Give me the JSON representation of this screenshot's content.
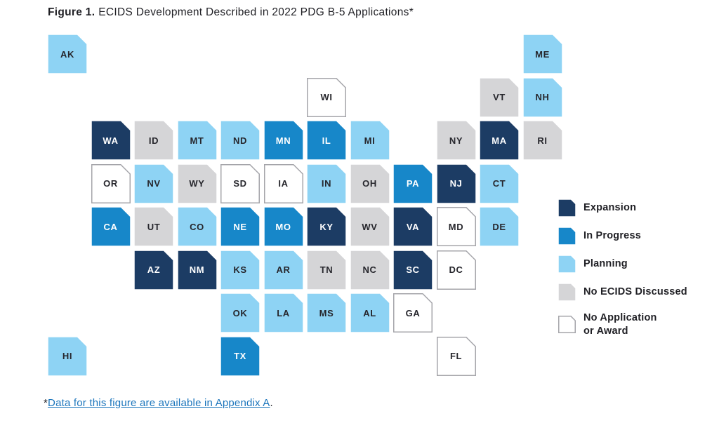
{
  "title": {
    "label": "Figure 1.",
    "text": "ECIDS Development Described in 2022 PDG B-5 Applications*"
  },
  "footnote": {
    "asterisk": "*",
    "link_text": "Data for this figure are available in Appendix A",
    "suffix": "."
  },
  "legend": {
    "items": [
      {
        "key": "expansion",
        "label": "Expansion"
      },
      {
        "key": "in_progress",
        "label": "In Progress"
      },
      {
        "key": "planning",
        "label": "Planning"
      },
      {
        "key": "no_ecids",
        "label": "No ECIDS Discussed"
      },
      {
        "key": "none",
        "label": "No Application\nor Award"
      }
    ]
  },
  "chart_data": {
    "type": "heatmap",
    "subtype": "us-state-tile-cartogram",
    "title": "Figure 1. ECIDS Development Described in 2022 PDG B-5 Applications*",
    "legend_position": "right",
    "categories": {
      "expansion": {
        "label": "Expansion",
        "fill": "#1c3c64",
        "text": "#ffffff"
      },
      "in_progress": {
        "label": "In Progress",
        "fill": "#1787c9",
        "text": "#ffffff"
      },
      "planning": {
        "label": "Planning",
        "fill": "#8ed3f4",
        "text": "#26262c"
      },
      "no_ecids": {
        "label": "No ECIDS Discussed",
        "fill": "#d5d5d7",
        "text": "#26262c"
      },
      "none": {
        "label": "No Application or Award",
        "fill": "#ffffff",
        "text": "#26262c",
        "stroke": "#a5a5aa"
      }
    },
    "states": [
      {
        "abbr": "AK",
        "row": 0,
        "col": 0,
        "category": "planning"
      },
      {
        "abbr": "ME",
        "row": 0,
        "col": 11,
        "category": "planning"
      },
      {
        "abbr": "WI",
        "row": 1,
        "col": 6,
        "category": "none"
      },
      {
        "abbr": "VT",
        "row": 1,
        "col": 10,
        "category": "no_ecids"
      },
      {
        "abbr": "NH",
        "row": 1,
        "col": 11,
        "category": "planning"
      },
      {
        "abbr": "WA",
        "row": 2,
        "col": 1,
        "category": "expansion"
      },
      {
        "abbr": "ID",
        "row": 2,
        "col": 2,
        "category": "no_ecids"
      },
      {
        "abbr": "MT",
        "row": 2,
        "col": 3,
        "category": "planning"
      },
      {
        "abbr": "ND",
        "row": 2,
        "col": 4,
        "category": "planning"
      },
      {
        "abbr": "MN",
        "row": 2,
        "col": 5,
        "category": "in_progress"
      },
      {
        "abbr": "IL",
        "row": 2,
        "col": 6,
        "category": "in_progress"
      },
      {
        "abbr": "MI",
        "row": 2,
        "col": 7,
        "category": "planning"
      },
      {
        "abbr": "NY",
        "row": 2,
        "col": 9,
        "category": "no_ecids"
      },
      {
        "abbr": "MA",
        "row": 2,
        "col": 10,
        "category": "expansion"
      },
      {
        "abbr": "RI",
        "row": 2,
        "col": 11,
        "category": "no_ecids"
      },
      {
        "abbr": "OR",
        "row": 3,
        "col": 1,
        "category": "none"
      },
      {
        "abbr": "NV",
        "row": 3,
        "col": 2,
        "category": "planning"
      },
      {
        "abbr": "WY",
        "row": 3,
        "col": 3,
        "category": "no_ecids"
      },
      {
        "abbr": "SD",
        "row": 3,
        "col": 4,
        "category": "none"
      },
      {
        "abbr": "IA",
        "row": 3,
        "col": 5,
        "category": "none"
      },
      {
        "abbr": "IN",
        "row": 3,
        "col": 6,
        "category": "planning"
      },
      {
        "abbr": "OH",
        "row": 3,
        "col": 7,
        "category": "no_ecids"
      },
      {
        "abbr": "PA",
        "row": 3,
        "col": 8,
        "category": "in_progress"
      },
      {
        "abbr": "NJ",
        "row": 3,
        "col": 9,
        "category": "expansion"
      },
      {
        "abbr": "CT",
        "row": 3,
        "col": 10,
        "category": "planning"
      },
      {
        "abbr": "CA",
        "row": 4,
        "col": 1,
        "category": "in_progress"
      },
      {
        "abbr": "UT",
        "row": 4,
        "col": 2,
        "category": "no_ecids"
      },
      {
        "abbr": "CO",
        "row": 4,
        "col": 3,
        "category": "planning"
      },
      {
        "abbr": "NE",
        "row": 4,
        "col": 4,
        "category": "in_progress"
      },
      {
        "abbr": "MO",
        "row": 4,
        "col": 5,
        "category": "in_progress"
      },
      {
        "abbr": "KY",
        "row": 4,
        "col": 6,
        "category": "expansion"
      },
      {
        "abbr": "WV",
        "row": 4,
        "col": 7,
        "category": "no_ecids"
      },
      {
        "abbr": "VA",
        "row": 4,
        "col": 8,
        "category": "expansion"
      },
      {
        "abbr": "MD",
        "row": 4,
        "col": 9,
        "category": "none"
      },
      {
        "abbr": "DE",
        "row": 4,
        "col": 10,
        "category": "planning"
      },
      {
        "abbr": "AZ",
        "row": 5,
        "col": 2,
        "category": "expansion"
      },
      {
        "abbr": "NM",
        "row": 5,
        "col": 3,
        "category": "expansion"
      },
      {
        "abbr": "KS",
        "row": 5,
        "col": 4,
        "category": "planning"
      },
      {
        "abbr": "AR",
        "row": 5,
        "col": 5,
        "category": "planning"
      },
      {
        "abbr": "TN",
        "row": 5,
        "col": 6,
        "category": "no_ecids"
      },
      {
        "abbr": "NC",
        "row": 5,
        "col": 7,
        "category": "no_ecids"
      },
      {
        "abbr": "SC",
        "row": 5,
        "col": 8,
        "category": "expansion"
      },
      {
        "abbr": "DC",
        "row": 5,
        "col": 9,
        "category": "none"
      },
      {
        "abbr": "OK",
        "row": 6,
        "col": 4,
        "category": "planning"
      },
      {
        "abbr": "LA",
        "row": 6,
        "col": 5,
        "category": "planning"
      },
      {
        "abbr": "MS",
        "row": 6,
        "col": 6,
        "category": "planning"
      },
      {
        "abbr": "AL",
        "row": 6,
        "col": 7,
        "category": "planning"
      },
      {
        "abbr": "GA",
        "row": 6,
        "col": 8,
        "category": "none"
      },
      {
        "abbr": "HI",
        "row": 7,
        "col": 0,
        "category": "planning"
      },
      {
        "abbr": "TX",
        "row": 7,
        "col": 4,
        "category": "in_progress"
      },
      {
        "abbr": "FL",
        "row": 7,
        "col": 9,
        "category": "none"
      }
    ]
  }
}
